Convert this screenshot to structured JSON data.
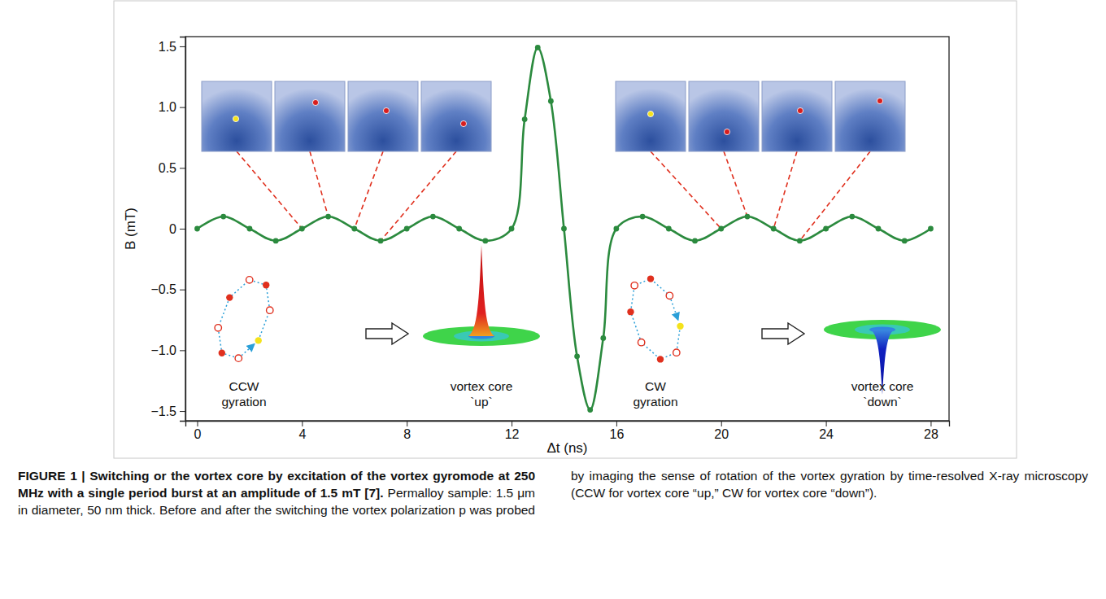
{
  "chart_data": {
    "type": "line",
    "title": "FIGURE 1 | Switching or the vortex core by excitation of the vortex gyromode at 250 MHz with a single period burst at an amplitude of 1.5 mT [7].",
    "caption": "Permalloy sample: 1.5 μm in diameter, 50 nm thick. Before and after the switching the vortex polarization p was probed by imaging the sense of rotation of the vortex gyration by time-resolved X-ray microscopy (CCW for vortex core “up,” CW for vortex core “down”).",
    "xlabel": "Δt (ns)",
    "ylabel": "B (mT)",
    "x": [
      0,
      1,
      2,
      3,
      4,
      5,
      6,
      7,
      8,
      9,
      10,
      11,
      12,
      12.5,
      13,
      13.5,
      14,
      14.5,
      15,
      15.5,
      16,
      17,
      18,
      19,
      20,
      21,
      22,
      23,
      24,
      25,
      26,
      27,
      28
    ],
    "values": [
      0,
      0.1,
      0,
      -0.1,
      0,
      0.1,
      0,
      -0.1,
      0,
      0.1,
      0,
      -0.1,
      0,
      0.9,
      1.49,
      1.05,
      0,
      -1.05,
      -1.49,
      -0.9,
      0,
      0.1,
      0,
      -0.1,
      0,
      0.1,
      0,
      -0.1,
      0,
      0.1,
      0,
      -0.1,
      0
    ],
    "color": "#2b8a3e",
    "marker": "circle",
    "xlim": [
      -0.45,
      28.7
    ],
    "ylim": [
      -1.58,
      1.58
    ],
    "xticks": [
      0,
      4,
      8,
      12,
      16,
      20,
      24,
      28
    ],
    "yticks": [
      {
        "value": -1.5,
        "label": "−1.5"
      },
      {
        "value": -1,
        "label": "−1.0"
      },
      {
        "value": -0.5,
        "label": "−0.5"
      },
      0,
      0.5,
      {
        "value": 1,
        "label": "1.0"
      },
      1.5
    ],
    "grid": false,
    "annotations": [
      "CCW gyration",
      "vortex core `up`",
      "CW gyration",
      "vortex core `down`"
    ]
  }
}
